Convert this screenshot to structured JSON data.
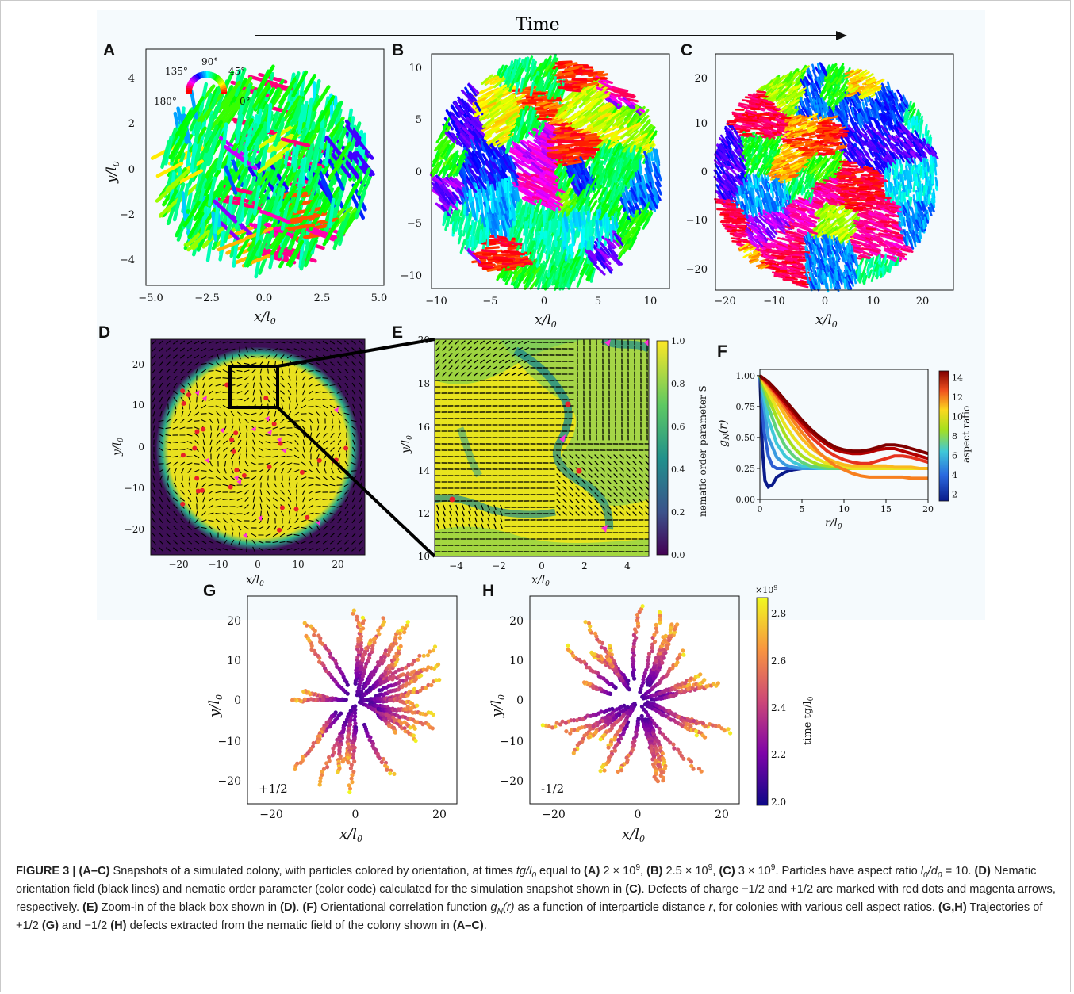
{
  "time_label": "Time",
  "panels": {
    "A": {
      "letter": "A",
      "xlabel": "x/l",
      "ylabel": "y/l",
      "xticks": [
        "−5.0",
        "−2.5",
        "0.0",
        "2.5",
        "5.0"
      ],
      "yticks": [
        "4",
        "2",
        "0",
        "−2",
        "−4"
      ]
    },
    "B": {
      "letter": "B",
      "xlabel": "x/l",
      "xticks": [
        "−10",
        "−5",
        "0",
        "5",
        "10"
      ],
      "yticks": [
        "10",
        "5",
        "0",
        "−5",
        "−10"
      ]
    },
    "C": {
      "letter": "C",
      "xlabel": "x/l",
      "xticks": [
        "−20",
        "−10",
        "0",
        "10",
        "20"
      ],
      "yticks": [
        "20",
        "10",
        "0",
        "−10",
        "−20"
      ]
    },
    "D": {
      "letter": "D",
      "xlabel": "x/l",
      "ylabel": "y/l",
      "xticks": [
        "−20",
        "−10",
        "0",
        "10",
        "20"
      ],
      "yticks": [
        "20",
        "10",
        "0",
        "−10",
        "−20"
      ]
    },
    "E": {
      "letter": "E",
      "xlabel": "x/l",
      "ylabel": "y/l",
      "xticks": [
        "−4",
        "−2",
        "0",
        "2",
        "4"
      ],
      "yticks": [
        "20",
        "18",
        "16",
        "14",
        "12",
        "10"
      ],
      "cbar_label": "nematic order parameter S",
      "cbar_ticks": [
        "1.0",
        "0.8",
        "0.6",
        "0.4",
        "0.2",
        "0.0"
      ]
    },
    "F": {
      "letter": "F",
      "xlabel": "r/l",
      "ylabel": "g",
      "xticks": [
        "0",
        "5",
        "10",
        "15",
        "20"
      ],
      "yticks": [
        "1.00",
        "0.75",
        "0.50",
        "0.25",
        "0.00"
      ],
      "cbar_label": "aspect ratio",
      "cbar_ticks": [
        "14",
        "12",
        "10",
        "8",
        "6",
        "4",
        "2"
      ]
    },
    "G": {
      "letter": "G",
      "xlabel": "x/l",
      "ylabel": "y/l",
      "xticks": [
        "−20",
        "0",
        "20"
      ],
      "yticks": [
        "20",
        "10",
        "0",
        "−10",
        "−20"
      ],
      "charge": "+1/2"
    },
    "H": {
      "letter": "H",
      "xlabel": "x/l",
      "ylabel": "y/l",
      "xticks": [
        "−20",
        "0",
        "20"
      ],
      "yticks": [
        "20",
        "10",
        "0",
        "−10",
        "−20"
      ],
      "charge": "-1/2",
      "cbar_label": "time tg/l",
      "cbar_ticks": [
        "2.8",
        "2.6",
        "2.4",
        "2.2",
        "2.0"
      ],
      "cbar_exp": "×10"
    }
  },
  "colorwheel": {
    "labels": [
      "90°",
      "135°",
      "45°",
      "180°",
      "0°"
    ]
  },
  "chart_data": [
    {
      "type": "line",
      "panel": "F",
      "title": "",
      "xlabel": "r/l0",
      "ylabel": "gN(r)",
      "xlim": [
        0,
        20
      ],
      "ylim": [
        0,
        1.05
      ],
      "series": [
        {
          "aspect": 14,
          "color": "#7f0000",
          "x": [
            0,
            1,
            2,
            3,
            4,
            5,
            6,
            7,
            8,
            9,
            10,
            11,
            12,
            13,
            14,
            15,
            16,
            17,
            18,
            19,
            20
          ],
          "values": [
            1.0,
            0.95,
            0.88,
            0.8,
            0.72,
            0.64,
            0.57,
            0.51,
            0.46,
            0.42,
            0.4,
            0.39,
            0.39,
            0.4,
            0.42,
            0.44,
            0.44,
            0.43,
            0.41,
            0.39,
            0.37
          ]
        },
        {
          "aspect": 13,
          "color": "#b30000",
          "x": [
            0,
            1,
            2,
            3,
            4,
            5,
            6,
            7,
            8,
            9,
            10,
            11,
            12,
            13,
            14,
            15,
            16,
            17,
            18,
            19,
            20
          ],
          "values": [
            1.0,
            0.94,
            0.86,
            0.78,
            0.7,
            0.62,
            0.55,
            0.49,
            0.44,
            0.4,
            0.38,
            0.37,
            0.37,
            0.38,
            0.4,
            0.41,
            0.41,
            0.39,
            0.37,
            0.35,
            0.33
          ]
        },
        {
          "aspect": 12,
          "color": "#e6321e",
          "x": [
            0,
            1,
            2,
            3,
            4,
            5,
            6,
            7,
            8,
            9,
            10,
            11,
            12,
            13,
            14,
            15,
            16,
            17,
            18,
            19,
            20
          ],
          "values": [
            1.0,
            0.93,
            0.85,
            0.76,
            0.67,
            0.59,
            0.51,
            0.45,
            0.39,
            0.35,
            0.32,
            0.3,
            0.29,
            0.29,
            0.31,
            0.33,
            0.35,
            0.35,
            0.34,
            0.32,
            0.3
          ]
        },
        {
          "aspect": 11,
          "color": "#f77f1e",
          "x": [
            0,
            1,
            2,
            3,
            4,
            5,
            6,
            7,
            8,
            9,
            10,
            11,
            12,
            13,
            14,
            15,
            16,
            17,
            18,
            19,
            20
          ],
          "values": [
            1.0,
            0.92,
            0.83,
            0.73,
            0.63,
            0.54,
            0.46,
            0.38,
            0.32,
            0.27,
            0.24,
            0.21,
            0.19,
            0.18,
            0.18,
            0.18,
            0.18,
            0.18,
            0.17,
            0.17,
            0.17
          ]
        },
        {
          "aspect": 10,
          "color": "#fbb81e",
          "x": [
            0,
            1,
            2,
            3,
            4,
            5,
            6,
            7,
            8,
            9,
            10,
            11,
            12,
            13,
            14,
            15,
            16,
            17,
            18,
            19,
            20
          ],
          "values": [
            1.0,
            0.9,
            0.79,
            0.68,
            0.58,
            0.49,
            0.42,
            0.37,
            0.33,
            0.3,
            0.28,
            0.27,
            0.27,
            0.27,
            0.27,
            0.27,
            0.26,
            0.26,
            0.26,
            0.25,
            0.25
          ]
        },
        {
          "aspect": 9,
          "color": "#e8e41e",
          "x": [
            0,
            1,
            2,
            3,
            4,
            5,
            6,
            7,
            8,
            9,
            10,
            11,
            12,
            13,
            14,
            15,
            16,
            17,
            18,
            19,
            20
          ],
          "values": [
            1.0,
            0.87,
            0.73,
            0.6,
            0.5,
            0.42,
            0.36,
            0.32,
            0.29,
            0.27,
            0.26,
            0.25,
            0.25,
            0.25,
            0.25,
            0.25,
            0.25,
            0.25,
            0.25,
            0.25,
            0.25
          ]
        },
        {
          "aspect": 8,
          "color": "#a6e01e",
          "x": [
            0,
            1,
            2,
            3,
            4,
            5,
            6,
            7,
            8,
            9,
            10,
            11,
            12,
            13,
            14,
            15,
            16,
            17,
            18,
            19,
            20
          ],
          "values": [
            1.0,
            0.82,
            0.66,
            0.52,
            0.42,
            0.35,
            0.31,
            0.28,
            0.27,
            0.26,
            0.26,
            0.25,
            0.25,
            0.25,
            0.25,
            0.25,
            0.25,
            0.25,
            0.25,
            0.25,
            0.25
          ]
        },
        {
          "aspect": 7,
          "color": "#5fd37a",
          "x": [
            0,
            1,
            2,
            3,
            4,
            5,
            6,
            7,
            8,
            9,
            10,
            11,
            12,
            13,
            14,
            15,
            16,
            17,
            18,
            19,
            20
          ],
          "values": [
            1.0,
            0.75,
            0.56,
            0.43,
            0.35,
            0.3,
            0.27,
            0.26,
            0.25,
            0.25,
            0.25,
            0.25,
            0.25,
            0.25,
            0.25,
            0.25,
            0.25,
            0.25,
            0.25,
            0.25,
            0.25
          ]
        },
        {
          "aspect": 6,
          "color": "#3fc8d8",
          "x": [
            0,
            1,
            2,
            3,
            4,
            5,
            6,
            7,
            8,
            9,
            10,
            11,
            12,
            13,
            14,
            15,
            16,
            17,
            18,
            19,
            20
          ],
          "values": [
            1.0,
            0.65,
            0.45,
            0.35,
            0.3,
            0.27,
            0.26,
            0.25,
            0.25,
            0.25,
            0.25,
            0.25,
            0.25,
            0.25,
            0.25,
            0.25,
            0.25,
            0.25,
            0.25,
            0.25,
            0.25
          ]
        },
        {
          "aspect": 5,
          "color": "#3a9ae0",
          "x": [
            0,
            1,
            2,
            3,
            4,
            5,
            6,
            7,
            8,
            9,
            10,
            11,
            12,
            13,
            14,
            15,
            16,
            17,
            18,
            19,
            20
          ],
          "values": [
            1.0,
            0.5,
            0.34,
            0.28,
            0.26,
            0.25,
            0.25,
            0.25,
            0.25,
            0.25,
            0.25,
            0.25,
            0.25,
            0.25,
            0.25,
            0.25,
            0.25,
            0.25,
            0.25,
            0.25,
            0.25
          ]
        },
        {
          "aspect": 4,
          "color": "#2a5ad0",
          "x": [
            0,
            0.5,
            1,
            1.5,
            2,
            2.5,
            3,
            4,
            5,
            6,
            7,
            8,
            9,
            10,
            11,
            12,
            13,
            14,
            15,
            16,
            17,
            18,
            19,
            20
          ],
          "values": [
            1.0,
            0.55,
            0.35,
            0.27,
            0.25,
            0.25,
            0.25,
            0.25,
            0.25,
            0.25,
            0.25,
            0.25,
            0.25,
            0.25,
            0.25,
            0.25,
            0.25,
            0.25,
            0.25,
            0.25,
            0.25,
            0.25,
            0.25,
            0.25
          ]
        },
        {
          "aspect": 2,
          "color": "#0a1a8a",
          "x": [
            0,
            0.3,
            0.6,
            1,
            1.5,
            2,
            3,
            4,
            5,
            6,
            7,
            8,
            9,
            10,
            11,
            12,
            13,
            14,
            15,
            16,
            17,
            18,
            19,
            20
          ],
          "values": [
            1.0,
            0.4,
            0.15,
            0.1,
            0.12,
            0.18,
            0.22,
            0.24,
            0.25,
            0.25,
            0.25,
            0.25,
            0.25,
            0.25,
            0.25,
            0.25,
            0.25,
            0.25,
            0.25,
            0.25,
            0.25,
            0.25,
            0.25,
            0.25
          ]
        }
      ]
    }
  ],
  "caption": {
    "fig": "FIGURE 3 |",
    "s1": " (A–C)",
    "t1": " Snapshots of a simulated colony, with particles colored by orientation, at times ",
    "t2": " equal to ",
    "a": "(A)",
    "va": " 2 × 10",
    "b": "(B)",
    "vb": " 2.5 × 10",
    "c": "(C)",
    "vc": " 3 × 10",
    "t3": ". Particles have aspect ratio ",
    "t4": " = 10. ",
    "d": "(D)",
    "t5": " Nematic orientation field (black lines) and nematic order parameter (color code) calculated for the simulation snapshot shown in ",
    "c2": "(C)",
    "t6": ". Defects of charge −1/2 and +1/2 are marked with red dots and magenta arrows, respectively. ",
    "e": "(E)",
    "t7": " Zoom-in of the black box shown in ",
    "d2": "(D)",
    "t8": ". ",
    "f": "(F)",
    "t9": " Orientational correlation function ",
    "t10": " as a function of interparticle distance ",
    "t11": ", for colonies with various cell aspect ratios. ",
    "gh": "(G,H)",
    "t12": " Trajectories of +1/2 ",
    "g": "(G)",
    "t13": " and −1/2 ",
    "h": "(H)",
    "t14": " defects extracted from the nematic field of the colony shown in ",
    "ac": "(A–C)",
    "t15": "."
  }
}
